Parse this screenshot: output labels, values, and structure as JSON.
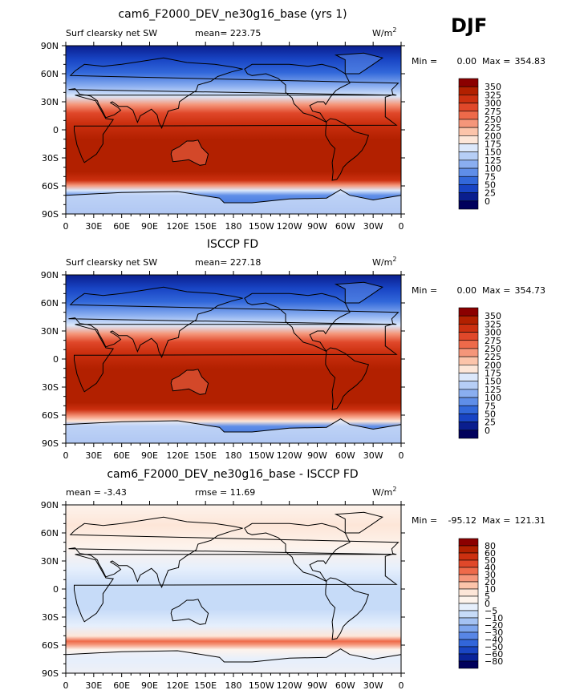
{
  "season_label": "DJF",
  "lon_ticks": [
    "0",
    "30E",
    "60E",
    "90E",
    "120E",
    "150E",
    "180",
    "150W",
    "120W",
    "90W",
    "60W",
    "30W",
    "0"
  ],
  "lat_ticks": [
    "90N",
    "60N",
    "30N",
    "0",
    "30S",
    "60S",
    "90S"
  ],
  "chart_data": [
    {
      "type": "heatmap",
      "title": "cam6_F2000_DEV_ne30g16_base (yrs 1)",
      "left_label": "Surf clearsky net SW",
      "center_label": "mean= 223.75",
      "units": "W/m",
      "units_sup": "2",
      "min_label": "Min =",
      "min_value": "0.00",
      "max_label": "Max =",
      "max_value": "354.83",
      "colorbar_labels": [
        "350",
        "325",
        "300",
        "275",
        "250",
        "225",
        "200",
        "175",
        "150",
        "125",
        "100",
        "75",
        "50",
        "25",
        "0"
      ],
      "colorbar_colors": [
        "#8b0000",
        "#b22000",
        "#cc3010",
        "#e0482a",
        "#ee6a4a",
        "#f5967a",
        "#fcc4aa",
        "#fde6d8",
        "#dce8fb",
        "#b6cef6",
        "#8aaef0",
        "#5f8ee8",
        "#3268da",
        "#1844c4",
        "#0a1e8e",
        "#00005c"
      ],
      "lat_values": [
        90,
        60,
        30,
        0,
        -30,
        -60,
        -90
      ],
      "zonal_mean_profile": [
        0,
        12,
        60,
        140,
        215,
        275,
        320,
        340,
        340,
        330,
        300,
        110,
        90
      ],
      "profile_lats": [
        90,
        80,
        65,
        50,
        35,
        20,
        5,
        -10,
        -25,
        -40,
        -55,
        -70,
        -90
      ]
    },
    {
      "type": "heatmap",
      "title": "ISCCP FD",
      "left_label": "Surf clearsky net SW",
      "center_label": "mean= 227.18",
      "units": "W/m",
      "units_sup": "2",
      "min_label": "Min =",
      "min_value": "0.00",
      "max_label": "Max =",
      "max_value": "354.73",
      "colorbar_labels": [
        "350",
        "325",
        "300",
        "275",
        "250",
        "225",
        "200",
        "175",
        "150",
        "125",
        "100",
        "75",
        "50",
        "25",
        "0"
      ],
      "colorbar_colors": [
        "#8b0000",
        "#b22000",
        "#cc3010",
        "#e0482a",
        "#ee6a4a",
        "#f5967a",
        "#fcc4aa",
        "#fde6d8",
        "#dce8fb",
        "#b6cef6",
        "#8aaef0",
        "#5f8ee8",
        "#3268da",
        "#1844c4",
        "#0a1e8e",
        "#00005c"
      ],
      "lat_values": [
        90,
        60,
        30,
        0,
        -30,
        -60,
        -90
      ],
      "zonal_mean_profile": [
        0,
        10,
        55,
        140,
        215,
        278,
        322,
        342,
        342,
        332,
        305,
        105,
        85
      ],
      "profile_lats": [
        90,
        80,
        65,
        50,
        35,
        20,
        5,
        -10,
        -25,
        -40,
        -55,
        -70,
        -90
      ]
    },
    {
      "type": "heatmap",
      "title": "cam6_F2000_DEV_ne30g16_base - ISCCP FD",
      "left_label": "mean =   -3.43",
      "center_label": "rmse =   11.69",
      "units": "W/m",
      "units_sup": "2",
      "min_label": "Min =",
      "min_value": "-95.12",
      "max_label": "Max =",
      "max_value": "121.31",
      "colorbar_labels": [
        "80",
        "60",
        "50",
        "40",
        "30",
        "20",
        "10",
        "5",
        "0",
        "−5",
        "−10",
        "−20",
        "−30",
        "−40",
        "−50",
        "−60",
        "−80"
      ],
      "colorbar_colors": [
        "#8b0000",
        "#b22000",
        "#cc3010",
        "#e0482a",
        "#ee6a4a",
        "#f5967a",
        "#fcc4aa",
        "#fde6d8",
        "#fdf3ec",
        "#e6effc",
        "#c6dbf8",
        "#a4c2f3",
        "#7ea6ee",
        "#5886e6",
        "#3266da",
        "#1a46c4",
        "#0a249a",
        "#00005c"
      ],
      "lat_values": [
        90,
        60,
        30,
        0,
        -30,
        -60,
        -90
      ]
    }
  ]
}
